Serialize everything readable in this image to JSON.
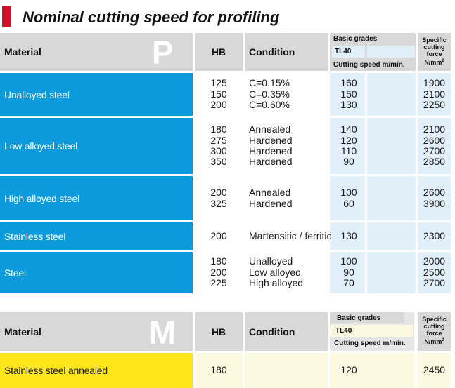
{
  "page_title": "Nominal cutting speed for profiling",
  "tables": [
    {
      "group_letter": "P",
      "headers": {
        "material": "Material",
        "hb": "HB",
        "condition": "Condition",
        "basic_grades": "Basic grades",
        "grade": "TL40",
        "cutting_speed": "Cutting speed m/min.",
        "specific_force_lines": [
          "Specific",
          "cutting",
          "force"
        ],
        "specific_force_unit": "N/mm",
        "specific_force_unit_sup": "2"
      },
      "rows": [
        {
          "material": "Unalloyed steel",
          "hb": [
            "125",
            "150",
            "200"
          ],
          "condition": [
            "C=0.15%",
            "C=0.35%",
            "C=0.60%"
          ],
          "speed": [
            "160",
            "150",
            "130"
          ],
          "force": [
            "1900",
            "2100",
            "2250"
          ]
        },
        {
          "material": "Low alloyed steel",
          "hb": [
            "180",
            "275",
            "300",
            "350"
          ],
          "condition": [
            "Annealed",
            "Hardened",
            "Hardened",
            "Hardened"
          ],
          "speed": [
            "140",
            "120",
            "110",
            "90"
          ],
          "force": [
            "2100",
            "2600",
            "2700",
            "2850"
          ]
        },
        {
          "material": "High alloyed steel",
          "hb": [
            "200",
            "325"
          ],
          "condition": [
            "Annealed",
            "Hardened"
          ],
          "speed": [
            "100",
            "60"
          ],
          "force": [
            "2600",
            "3900"
          ]
        },
        {
          "material": "Stainless steel",
          "hb": [
            "200"
          ],
          "condition": [
            "Martensitic / ferritic"
          ],
          "speed": [
            "130"
          ],
          "force": [
            "2300"
          ]
        },
        {
          "material": "Steel",
          "hb": [
            "180",
            "200",
            "225"
          ],
          "condition": [
            "Unalloyed",
            "Low alloyed",
            "High alloyed"
          ],
          "speed": [
            "100",
            "90",
            "70"
          ],
          "force": [
            "2000",
            "2500",
            "2700"
          ]
        }
      ]
    },
    {
      "group_letter": "M",
      "headers": {
        "material": "Material",
        "hb": "HB",
        "condition": "Condition",
        "basic_grades": "Basic grades",
        "grade": "TL40",
        "cutting_speed": "Cutting speed m/min.",
        "specific_force_lines": [
          "Specific",
          "cutting",
          "force"
        ],
        "specific_force_unit": "N/mm",
        "specific_force_unit_sup": "2"
      },
      "rows": [
        {
          "material": "Stainless steel annealed",
          "hb": [
            "180"
          ],
          "condition": [],
          "speed": [
            "120"
          ],
          "force": [
            "2450"
          ]
        }
      ]
    }
  ],
  "colors": {
    "title_accent": "#d40f2a",
    "p_group_blue": "#0b9bdc",
    "p_value_bg": "#e1eff8",
    "m_group_yellow": "#ffe61c",
    "m_value_bg": "#fdf8e0",
    "header_grey": "#d8d8d8"
  }
}
